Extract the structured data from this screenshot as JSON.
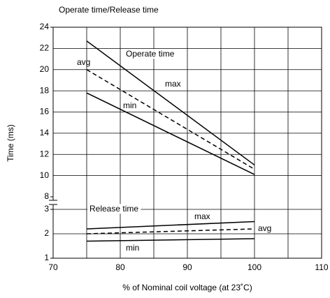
{
  "chart_data": [
    {
      "type": "line",
      "title": "Operate time/Release time",
      "ylabel": "Time (ms)",
      "label": "Operate time",
      "x": [
        75,
        100
      ],
      "ylim": [
        8,
        24
      ],
      "yticks": [
        8,
        10,
        12,
        14,
        16,
        18,
        20,
        22,
        24
      ],
      "grid": true,
      "series": [
        {
          "name": "max",
          "color": "#000000",
          "dashed": false,
          "values": [
            22.7,
            11.0
          ]
        },
        {
          "name": "avg",
          "color": "#000000",
          "dashed": true,
          "values": [
            20.0,
            10.6
          ]
        },
        {
          "name": "min",
          "color": "#000000",
          "dashed": false,
          "values": [
            17.8,
            10.1
          ]
        }
      ]
    },
    {
      "type": "line",
      "label": "Release time",
      "xlabel": "% of Nominal coil voltage (at 23˚C)",
      "x": [
        75,
        100
      ],
      "xlim": [
        70,
        110
      ],
      "xticks": [
        70,
        80,
        90,
        100,
        110
      ],
      "xminor": [
        75,
        85,
        95,
        105
      ],
      "ylim": [
        1,
        3
      ],
      "yticks": [
        1,
        2,
        3
      ],
      "grid": true,
      "series": [
        {
          "name": "max",
          "color": "#000000",
          "dashed": false,
          "values": [
            2.2,
            2.5
          ]
        },
        {
          "name": "avg",
          "color": "#000000",
          "dashed": true,
          "values": [
            2.0,
            2.2
          ]
        },
        {
          "name": "min",
          "color": "#000000",
          "dashed": false,
          "values": [
            1.7,
            1.8
          ]
        }
      ]
    }
  ]
}
